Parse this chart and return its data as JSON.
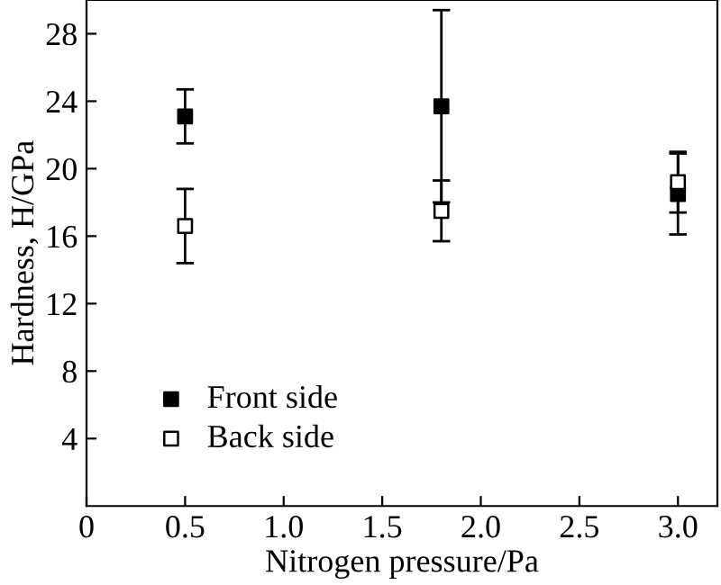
{
  "chart_data": {
    "type": "scatter",
    "xlabel": "Nitrogen pressure/Pa",
    "ylabel": "Hardness, H/GPa",
    "x": [
      0.5,
      1.8,
      3.0
    ],
    "series": [
      {
        "name": "Front side",
        "color": "#000000",
        "marker": "square",
        "values": [
          23.1,
          23.7,
          18.5
        ],
        "errors": [
          1.6,
          5.7,
          2.4
        ]
      },
      {
        "name": "Back side",
        "color": "#000000",
        "marker": "square",
        "values": [
          16.6,
          17.5,
          19.2
        ],
        "errors": [
          2.2,
          1.8,
          1.8
        ]
      }
    ],
    "xlim": [
      0,
      3.2
    ],
    "ylim": [
      0,
      30
    ],
    "xticks": [
      0,
      {
        "value": 0.5,
        "label": "0.5"
      },
      {
        "value": 1.0,
        "label": "1.0"
      },
      {
        "value": 1.5,
        "label": "1.5"
      },
      {
        "value": 2.0,
        "label": "2.0"
      },
      {
        "value": 2.5,
        "label": "2.5"
      },
      {
        "value": 3.0,
        "label": "3.0"
      }
    ],
    "yticks": [
      4,
      8,
      12,
      16,
      20,
      24,
      28
    ],
    "legend": "bottom left",
    "grid": false
  }
}
